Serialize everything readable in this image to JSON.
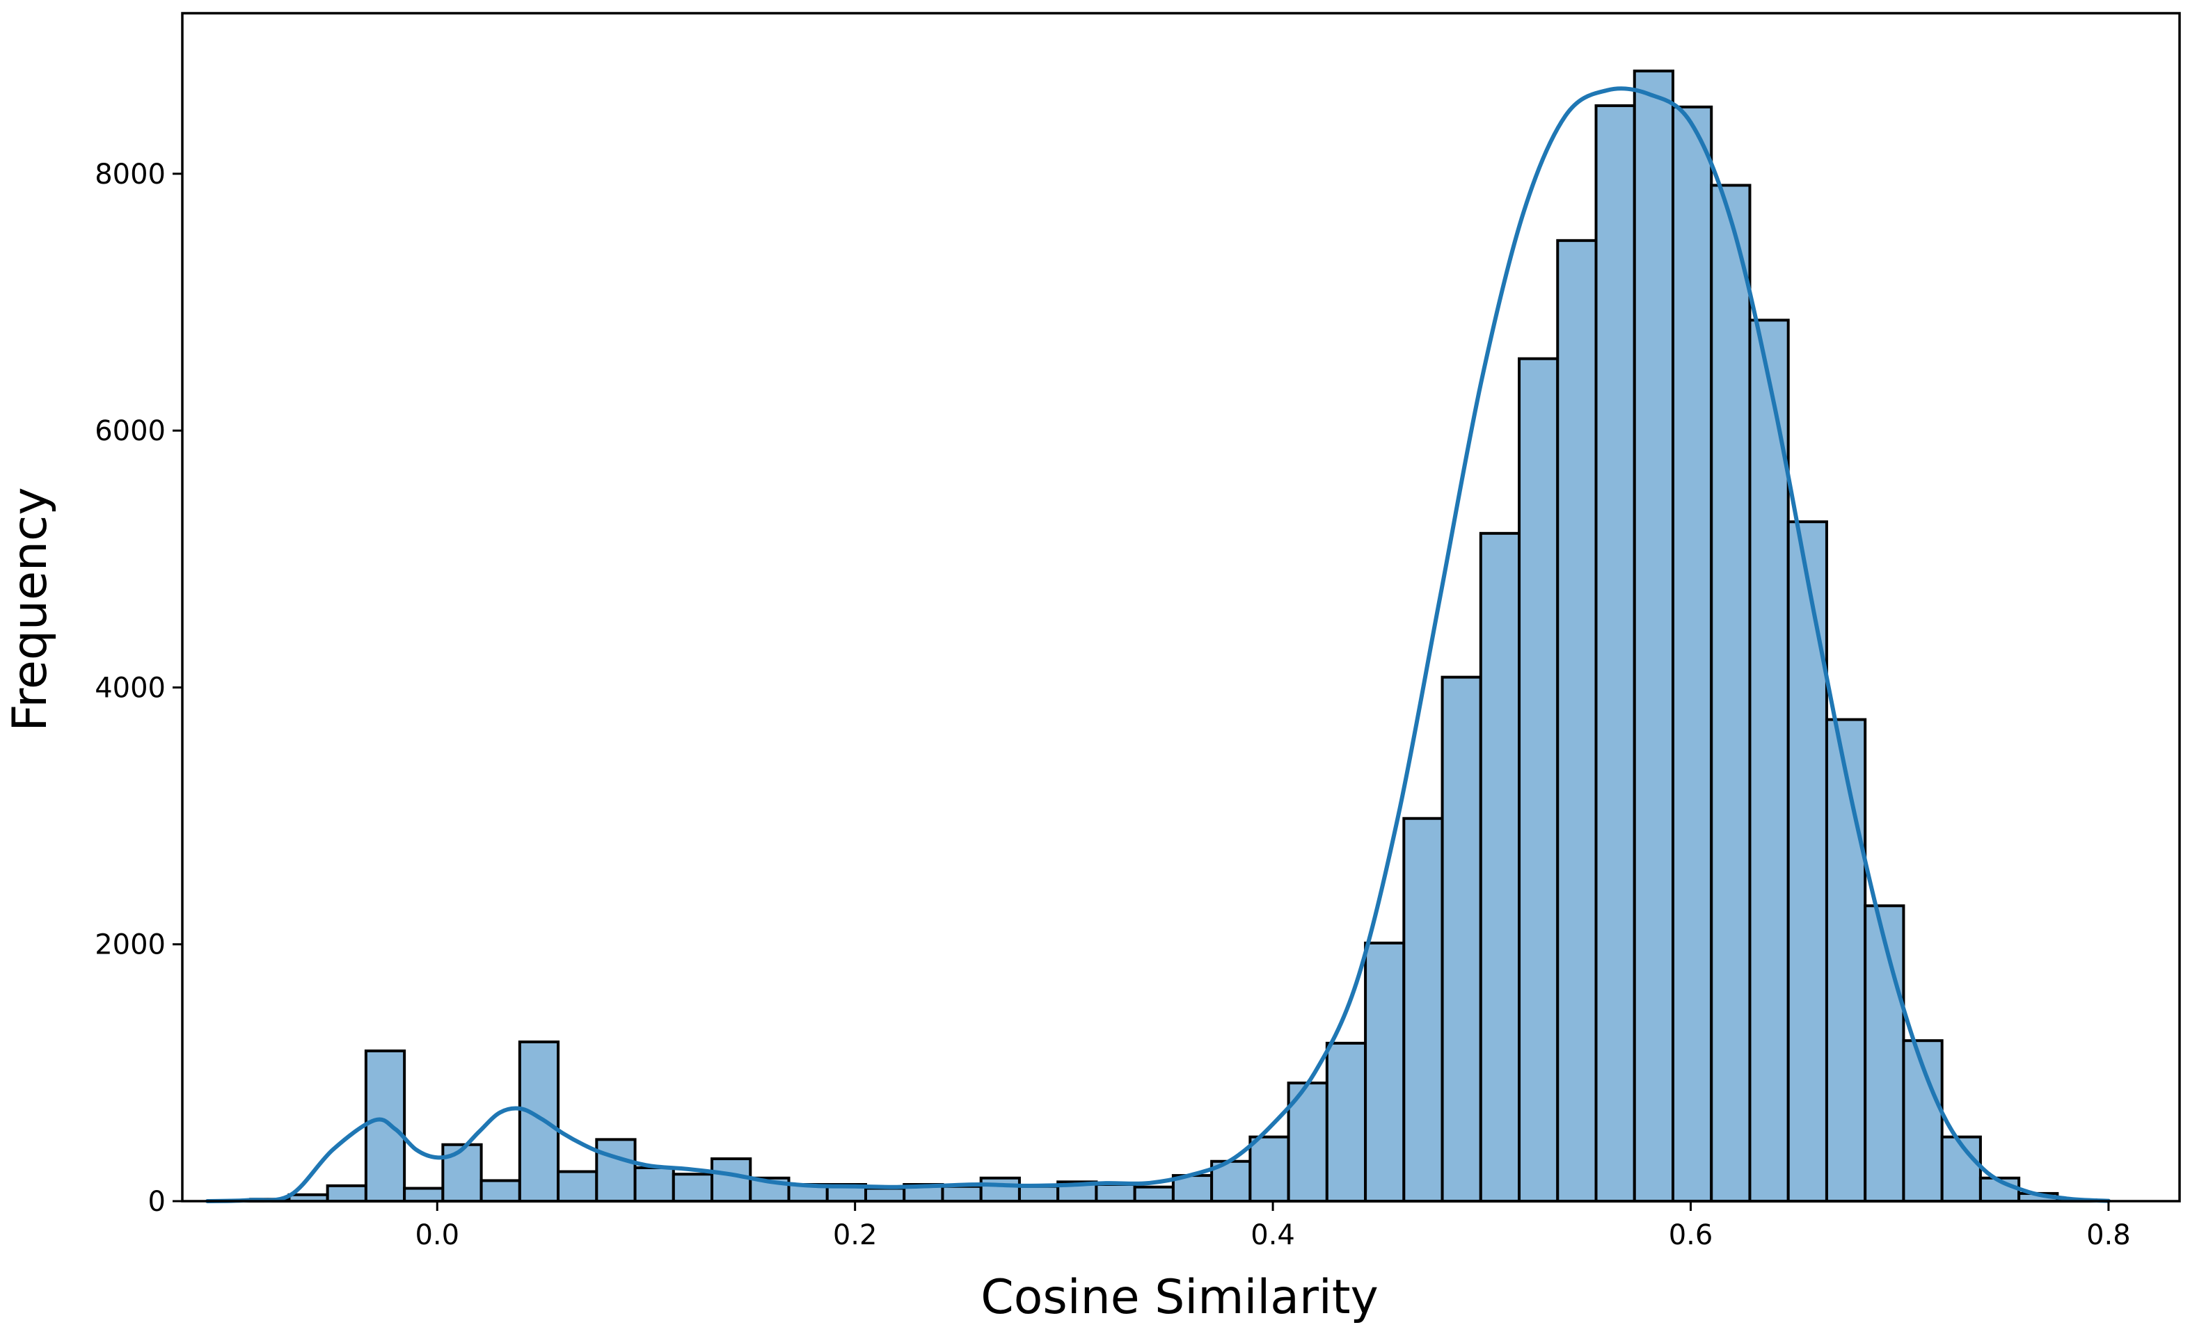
{
  "chart_data": {
    "type": "bar",
    "subtype": "histogram_with_kde",
    "title": "",
    "xlabel": "Cosine Similarity",
    "ylabel": "Frequency",
    "xlim": [
      -0.122,
      0.834
    ],
    "ylim": [
      0,
      9250
    ],
    "xticks": [
      0.0,
      0.2,
      0.4,
      0.6,
      0.8
    ],
    "xtick_labels": [
      "0.0",
      "0.2",
      "0.4",
      "0.6",
      "0.8"
    ],
    "yticks": [
      0,
      2000,
      4000,
      6000,
      8000
    ],
    "ytick_labels": [
      "0",
      "2000",
      "4000",
      "6000",
      "8000"
    ],
    "grid": false,
    "legend": "none",
    "colors": {
      "bar_fill": "#8ab8db",
      "bar_edge": "#000000",
      "kde_line": "#1f77b4"
    },
    "bins": {
      "edges": [
        -0.1077,
        -0.0893,
        -0.0709,
        -0.0525,
        -0.0341,
        -0.0157,
        0.0027,
        0.0211,
        0.0395,
        0.0579,
        0.0763,
        0.0947,
        0.1131,
        0.1315,
        0.1499,
        0.1683,
        0.1867,
        0.2051,
        0.2235,
        0.2419,
        0.2603,
        0.2787,
        0.2971,
        0.3155,
        0.3339,
        0.3523,
        0.3707,
        0.3891,
        0.4075,
        0.4259,
        0.4443,
        0.4627,
        0.4811,
        0.4995,
        0.5179,
        0.5363,
        0.5547,
        0.5731,
        0.5915,
        0.6099,
        0.6283,
        0.6467,
        0.6651,
        0.6835,
        0.7019,
        0.7203,
        0.7387,
        0.7571,
        0.7755,
        0.7939
      ],
      "counts": [
        5,
        15,
        50,
        120,
        1170,
        100,
        440,
        160,
        1240,
        230,
        480,
        260,
        210,
        330,
        180,
        130,
        130,
        100,
        130,
        115,
        180,
        115,
        150,
        130,
        110,
        200,
        310,
        500,
        920,
        1230,
        2010,
        2980,
        4080,
        5200,
        6560,
        7480,
        8530,
        8800,
        8520,
        7910,
        6860,
        5290,
        3750,
        2300,
        1250,
        500,
        180,
        60,
        10
      ]
    },
    "kde": {
      "x": [
        -0.11,
        -0.09,
        -0.07,
        -0.05,
        -0.03,
        -0.02,
        -0.01,
        0.0,
        0.01,
        0.02,
        0.03,
        0.04,
        0.05,
        0.06,
        0.07,
        0.08,
        0.1,
        0.12,
        0.14,
        0.16,
        0.18,
        0.2,
        0.22,
        0.24,
        0.26,
        0.28,
        0.3,
        0.32,
        0.34,
        0.36,
        0.38,
        0.4,
        0.42,
        0.44,
        0.46,
        0.48,
        0.5,
        0.52,
        0.54,
        0.56,
        0.58,
        0.6,
        0.62,
        0.64,
        0.66,
        0.68,
        0.7,
        0.72,
        0.74,
        0.76,
        0.78,
        0.8
      ],
      "y": [
        0,
        8,
        50,
        400,
        630,
        560,
        400,
        340,
        380,
        540,
        690,
        720,
        640,
        530,
        440,
        370,
        280,
        250,
        210,
        150,
        120,
        115,
        110,
        120,
        130,
        120,
        125,
        140,
        140,
        200,
        320,
        600,
        1000,
        1700,
        3000,
        4700,
        6400,
        7700,
        8450,
        8650,
        8620,
        8400,
        7600,
        6200,
        4500,
        2900,
        1600,
        700,
        250,
        80,
        20,
        2
      ]
    }
  }
}
